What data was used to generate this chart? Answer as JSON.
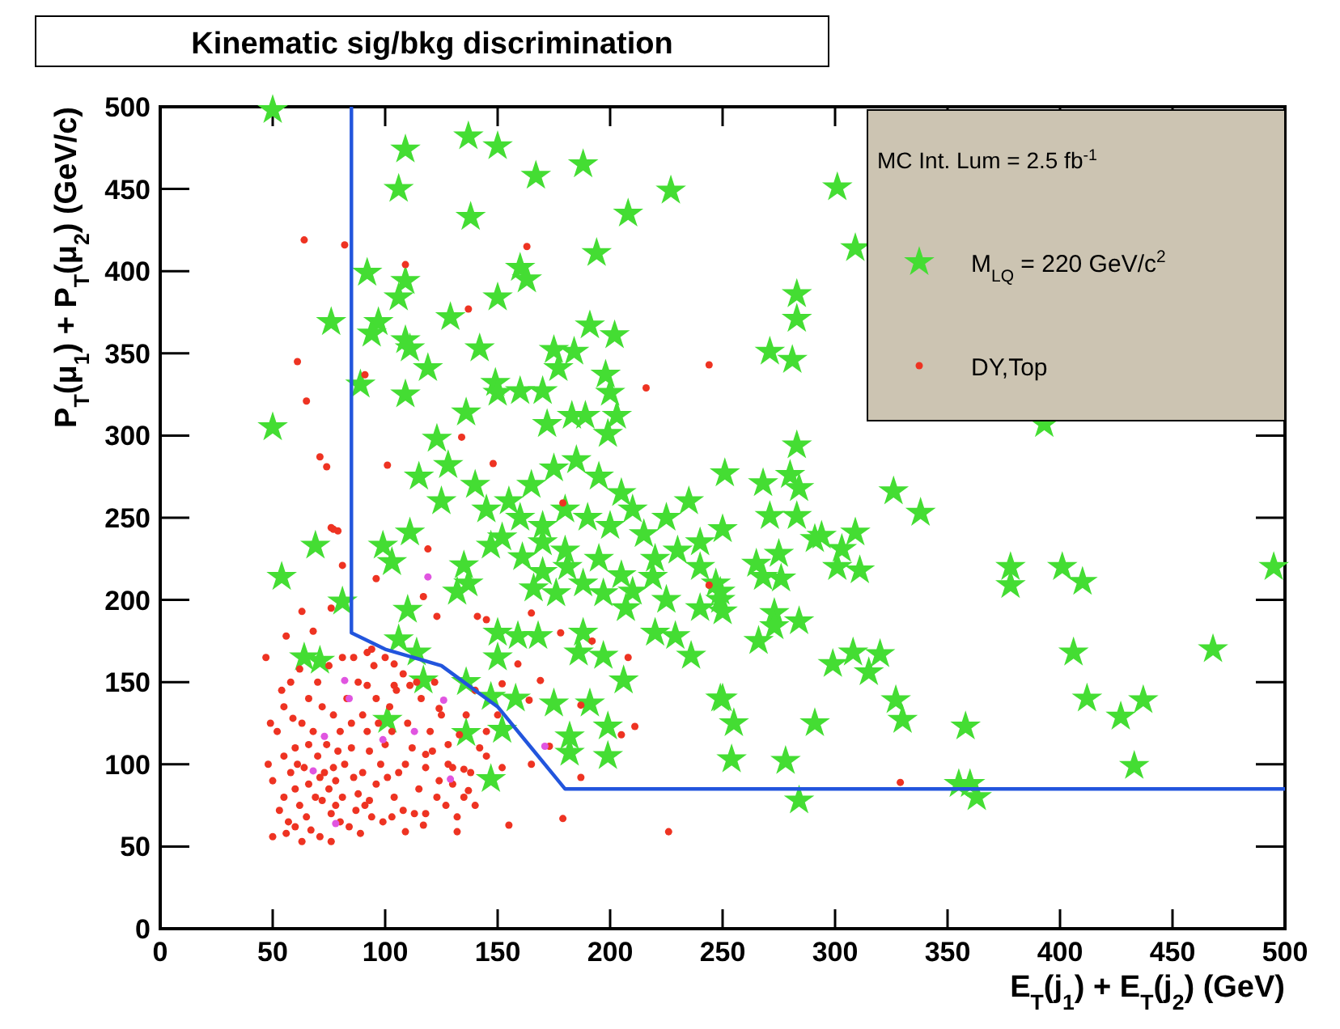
{
  "chart_data": {
    "type": "scatter",
    "title": "Kinematic sig/bkg discrimination",
    "xlabel": "E$_{T}$(j$_{1}$) + E$_{T}$(j$_{2}$) (GeV)",
    "ylabel": "P$_{T}$(μ$_{1}$) + P$_{T}$(μ$_{2}$) (GeV/c)",
    "legend_title": "MC Int. Lum = 2.5 fb$^{-1}$",
    "legend": "top right",
    "grid": false,
    "xlim": [
      0,
      500
    ],
    "ylim": [
      0,
      500
    ],
    "xticks": [
      0,
      50,
      100,
      150,
      200,
      250,
      300,
      350,
      400,
      450,
      500
    ],
    "yticks": [
      0,
      50,
      100,
      150,
      200,
      250,
      300,
      350,
      400,
      450,
      500
    ],
    "series": [
      {
        "name": "M$_{LQ}$ = 220 GeV/c$^{2}$",
        "color": "#44dd33",
        "marker": "star",
        "x": [
          50,
          109,
          137,
          150,
          167,
          188,
          106,
          227,
          138,
          208,
          194,
          92,
          109,
          160,
          163,
          106,
          150,
          129,
          76,
          97,
          94,
          109,
          111,
          142,
          191,
          202,
          175,
          184,
          119,
          177,
          89,
          198,
          109,
          149,
          150,
          160,
          170,
          200,
          136,
          172,
          183,
          189,
          203,
          50,
          123,
          199,
          301,
          309,
          283,
          283,
          271,
          281,
          393,
          283,
          251,
          268,
          280,
          284,
          326,
          338,
          271,
          283,
          250,
          294,
          309,
          291,
          303,
          265,
          275,
          268,
          276,
          301,
          311,
          247,
          249,
          250,
          273,
          273,
          284,
          266,
          299,
          308,
          315,
          320,
          378,
          378,
          401,
          410,
          495,
          406,
          468,
          250,
          255,
          291,
          327,
          330,
          358,
          412,
          427,
          437,
          254,
          278,
          433,
          284,
          355,
          363,
          69,
          54,
          103,
          99,
          111,
          81,
          110,
          135,
          137,
          132,
          152,
          161,
          170,
          181,
          188,
          197,
          207,
          150,
          159,
          168,
          188,
          186,
          197,
          220,
          229,
          236,
          219,
          240,
          249,
          147,
          166,
          176,
          150,
          106,
          114,
          64,
          71,
          117,
          136,
          147,
          158,
          175,
          191,
          206,
          101,
          136,
          152,
          182,
          182,
          199,
          199,
          147,
          249,
          160,
          170,
          180,
          190,
          200,
          210,
          215,
          225,
          235,
          205,
          195,
          185,
          175,
          165,
          155,
          145,
          230,
          240,
          220,
          205,
          195,
          180,
          170,
          125,
          115,
          128,
          140,
          210,
          225,
          240,
          360
        ],
        "values": [
          498,
          474,
          482,
          476,
          458,
          465,
          450,
          449,
          433,
          435,
          411,
          399,
          394,
          402,
          395,
          384,
          384,
          372,
          369,
          369,
          362,
          358,
          353,
          353,
          367,
          361,
          352,
          351,
          341,
          341,
          331,
          337,
          325,
          332,
          326,
          327,
          327,
          326,
          314,
          307,
          312,
          312,
          312,
          305,
          298,
          301,
          451,
          414,
          386,
          371,
          351,
          346,
          307,
          294,
          277,
          271,
          276,
          268,
          266,
          253,
          251,
          251,
          243,
          239,
          241,
          237,
          231,
          222,
          228,
          214,
          213,
          220,
          218,
          210,
          200,
          193,
          192,
          184,
          187,
          175,
          161,
          168,
          156,
          167,
          220,
          209,
          220,
          211,
          220,
          168,
          170,
          140,
          125,
          125,
          139,
          127,
          123,
          140,
          129,
          139,
          103,
          102,
          99,
          78,
          88,
          80,
          233,
          214,
          223,
          233,
          241,
          199,
          194,
          221,
          210,
          205,
          238,
          226,
          217,
          220,
          210,
          204,
          195,
          180,
          178,
          178,
          180,
          168,
          166,
          180,
          178,
          166,
          214,
          220,
          205,
          233,
          207,
          204,
          165,
          176,
          168,
          165,
          163,
          151,
          150,
          141,
          140,
          137,
          137,
          151,
          127,
          119,
          121,
          117,
          107,
          123,
          105,
          91,
          140,
          250,
          245,
          255,
          250,
          245,
          255,
          240,
          250,
          260,
          265,
          275,
          285,
          280,
          270,
          260,
          255,
          230,
          235,
          225,
          215,
          225,
          230,
          235,
          260,
          275,
          282,
          270,
          205,
          200,
          195,
          88
        ]
      },
      {
        "name": "DY,Top",
        "color": "#ee3322",
        "marker": "circle",
        "x": [
          64,
          82,
          109,
          163,
          137,
          61,
          91,
          244,
          216,
          65,
          134,
          71,
          74,
          101,
          148,
          179,
          76,
          79,
          77,
          81,
          96,
          119,
          117,
          123,
          141,
          145,
          165,
          178,
          192,
          208,
          159,
          169,
          152,
          164,
          187,
          211,
          205,
          173,
          165,
          187,
          179,
          155,
          132,
          226,
          244,
          152,
          145,
          137,
          140,
          130,
          135,
          128,
          118,
          124,
          123,
          118,
          109,
          103,
          76,
          63,
          50,
          47,
          63,
          68,
          76,
          56,
          86,
          94,
          104,
          111,
          104,
          92,
          329,
          52,
          55,
          58,
          60,
          62,
          65,
          55,
          50,
          53,
          57,
          60,
          63,
          66,
          58,
          55,
          62,
          70,
          72,
          68,
          70,
          73,
          75,
          72,
          76,
          80,
          78,
          82,
          85,
          80,
          77,
          83,
          88,
          90,
          92,
          86,
          88,
          91,
          94,
          96,
          98,
          100,
          97,
          102,
          105,
          95,
          108,
          110,
          112,
          106,
          104,
          108,
          115,
          118,
          120,
          116,
          122,
          125,
          128,
          130,
          133,
          136,
          140,
          142,
          138,
          145,
          150,
          67,
          71,
          84,
          89,
          93,
          99,
          64,
          66,
          69,
          74,
          79,
          81,
          87,
          59,
          54,
          61,
          77,
          85,
          93,
          101,
          113,
          117,
          124,
          127,
          132,
          66,
          71,
          78,
          90,
          96,
          103,
          109,
          114,
          121,
          135,
          56,
          60,
          75,
          81,
          92,
          100,
          48,
          49
        ],
        "values": [
          419,
          416,
          404,
          415,
          377,
          345,
          337,
          343,
          329,
          321,
          299,
          287,
          281,
          282,
          283,
          259,
          244,
          242,
          243,
          221,
          213,
          231,
          202,
          190,
          190,
          188,
          192,
          180,
          175,
          165,
          161,
          151,
          149,
          139,
          136,
          123,
          118,
          111,
          100,
          92,
          67,
          63,
          59,
          59,
          209,
          98,
          105,
          84,
          75,
          98,
          97,
          112,
          106,
          134,
          80,
          70,
          59,
          68,
          53,
          53,
          56,
          165,
          193,
          181,
          195,
          178,
          165,
          170,
          161,
          148,
          148,
          148,
          89,
          120,
          105,
          95,
          85,
          75,
          68,
          80,
          90,
          72,
          65,
          110,
          125,
          140,
          150,
          135,
          158,
          150,
          135,
          120,
          105,
          95,
          85,
          78,
          70,
          65,
          90,
          100,
          110,
          120,
          130,
          140,
          150,
          130,
          120,
          92,
          82,
          75,
          68,
          88,
          100,
          112,
          125,
          135,
          145,
          160,
          155,
          125,
          110,
          95,
          80,
          72,
          85,
          98,
          120,
          140,
          150,
          130,
          100,
          88,
          118,
          130,
          145,
          110,
          95,
          120,
          130,
          60,
          56,
          62,
          58,
          78,
          65,
          98,
          88,
          80,
          112,
          108,
          80,
          72,
          128,
          145,
          100,
          98,
          125,
          108,
          92,
          70,
          63,
          90,
          75,
          68,
          112,
          92,
          75,
          95,
          140,
          120,
          100,
          150,
          108,
          80,
          58,
          62,
          160,
          165,
          168,
          165,
          100,
          125
        ]
      },
      {
        "color": "#e055e0",
        "marker": "circle",
        "x": [
          119,
          82,
          84,
          126,
          73,
          99,
          113,
          171,
          68,
          129,
          78
        ],
        "values": [
          214,
          151,
          140,
          139,
          117,
          115,
          120,
          111,
          96,
          91,
          64
        ]
      },
      {
        "type": "line",
        "color": "#2255dd",
        "line_style": "solid",
        "x": [
          85,
          85,
          100,
          125,
          150,
          165,
          180,
          500
        ],
        "values": [
          500,
          180,
          170,
          160,
          135,
          110,
          85,
          85
        ]
      }
    ]
  }
}
